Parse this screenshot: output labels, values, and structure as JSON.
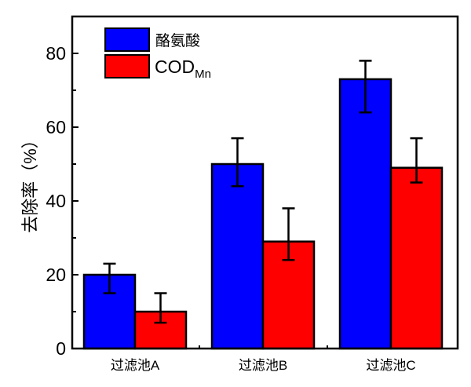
{
  "chart_data": {
    "type": "bar",
    "title": "",
    "xlabel": "",
    "ylabel": "去除率（%）",
    "ylim": [
      0,
      90
    ],
    "yticks": [
      0,
      20,
      40,
      60,
      80
    ],
    "grid": false,
    "legend_position": "top-left",
    "categories": [
      "过滤池A",
      "过滤池B",
      "过滤池C"
    ],
    "series": [
      {
        "name": "酪氨酸",
        "color": "#0000ff",
        "values": [
          20,
          50,
          73
        ],
        "error_low": [
          15,
          44,
          64
        ],
        "error_high": [
          23,
          57,
          78
        ]
      },
      {
        "name": "COD",
        "name_subscript": "Mn",
        "color": "#ff0000",
        "values": [
          10,
          29,
          49
        ],
        "error_low": [
          7,
          24,
          45
        ],
        "error_high": [
          15,
          38,
          57
        ]
      }
    ]
  }
}
